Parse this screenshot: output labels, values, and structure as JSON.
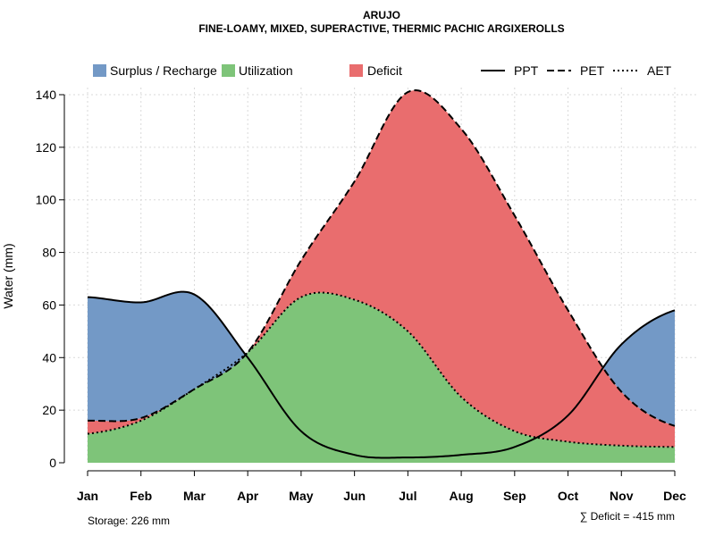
{
  "chart_data": {
    "type": "area",
    "title": "ARUJO",
    "subtitle": "FINE-LOAMY, MIXED, SUPERACTIVE, THERMIC PACHIC ARGIXEROLLS",
    "xlabel": "",
    "ylabel": "Water (mm)",
    "ylim": [
      0,
      140
    ],
    "yticks": [
      0,
      20,
      40,
      60,
      80,
      100,
      120,
      140
    ],
    "grid": true,
    "legend_position": "top",
    "categories": [
      "Jan",
      "Feb",
      "Mar",
      "Apr",
      "May",
      "Jun",
      "Jul",
      "Aug",
      "Sep",
      "Oct",
      "Nov",
      "Dec"
    ],
    "series": [
      {
        "name": "PPT",
        "style": "solid",
        "values": [
          63,
          61,
          64,
          40,
          12,
          3,
          2,
          3,
          6,
          18,
          45,
          58
        ]
      },
      {
        "name": "PET",
        "style": "dashed",
        "values": [
          16,
          17,
          28,
          42,
          77,
          107,
          141,
          127,
          94,
          58,
          27,
          14
        ]
      },
      {
        "name": "AET",
        "style": "dotted",
        "values": [
          11,
          16,
          28,
          42,
          63,
          62,
          50,
          25,
          12,
          8,
          6.5,
          6
        ]
      }
    ],
    "fill_legend": [
      {
        "name": "Surplus / Recharge",
        "color": "#7399c6"
      },
      {
        "name": "Utilization",
        "color": "#7ec479"
      },
      {
        "name": "Deficit",
        "color": "#e96d6e"
      }
    ],
    "line_legend": [
      "PPT",
      "PET",
      "AET"
    ],
    "annotations": {
      "storage": "Storage: 226 mm",
      "deficit": "∑ Deficit = -415 mm"
    }
  }
}
